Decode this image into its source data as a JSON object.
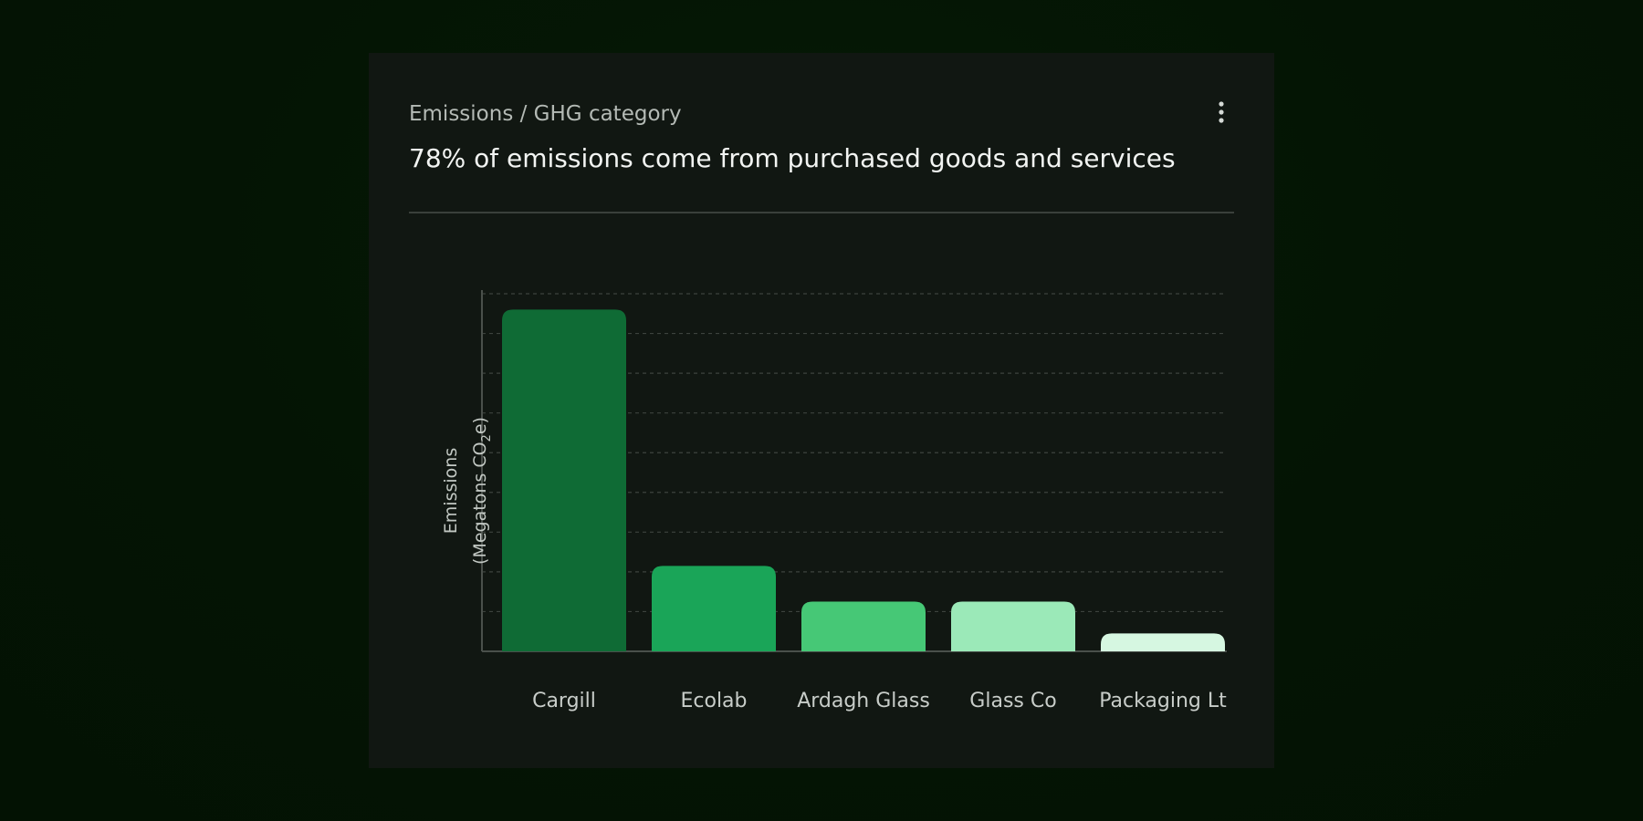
{
  "card": {
    "category": "Emissions / GHG category",
    "headline": "78% of emissions come from purchased goods and services",
    "menu_icon": "more-vertical-icon"
  },
  "chart_data": {
    "type": "bar",
    "categories": [
      "Cargill",
      "Ecolab",
      "Ardagh Glass",
      "Glass Co",
      "Packaging Lt"
    ],
    "values": [
      86,
      21.5,
      12.5,
      12.5,
      4.5
    ],
    "colors": [
      "#0f6b35",
      "#1aa558",
      "#46c876",
      "#9be9b8",
      "#d6f7e1"
    ],
    "ylabel_line1": "Emissions",
    "ylabel_line2": "(Megatons CO",
    "ylabel_sub": "2",
    "ylabel_line2_end": "e)",
    "ylim": [
      0,
      90
    ],
    "grid": true,
    "grid_step": 10
  }
}
